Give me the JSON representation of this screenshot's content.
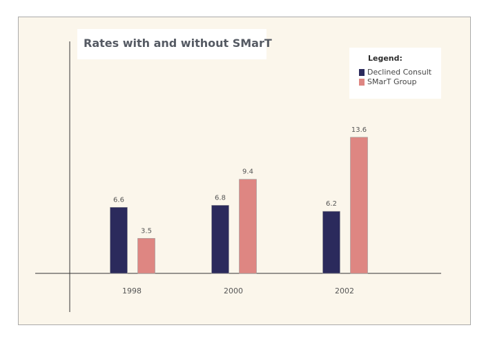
{
  "chart_data": {
    "type": "bar",
    "title": "Rates with and without SMarT",
    "legend_title": "Legend:",
    "legend_position": "top-right",
    "categories": [
      "1998",
      "2000",
      "2002"
    ],
    "series": [
      {
        "name": "Declined Consult",
        "color": "#2b2a5c",
        "values": [
          6.6,
          6.8,
          6.2
        ]
      },
      {
        "name": "SMarT Group",
        "color": "#de8682",
        "values": [
          3.5,
          9.4,
          13.6
        ]
      }
    ],
    "ylim": [
      0,
      16
    ],
    "grid": false,
    "xlabel": "",
    "ylabel": ""
  }
}
